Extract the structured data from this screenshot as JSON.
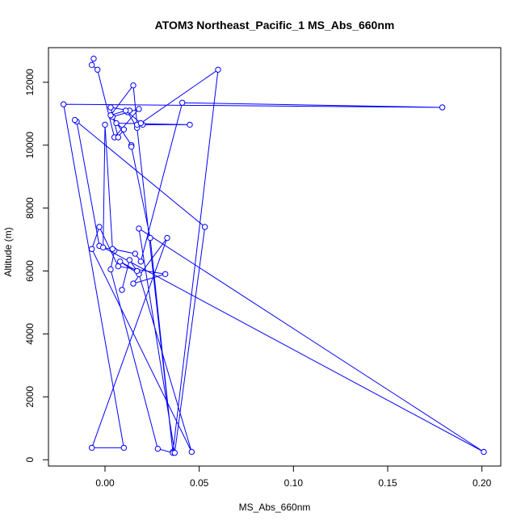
{
  "chart_data": {
    "type": "line",
    "title": "ATOM3 Northeast_Pacific_1 MS_Abs_660nm",
    "xlabel": "MS_Abs_660nm",
    "ylabel": "Altitude (m)",
    "xlim": [
      -0.03,
      0.21
    ],
    "ylim": [
      -200,
      13100
    ],
    "x_ticks": [
      0.0,
      0.05,
      0.1,
      0.15,
      0.2
    ],
    "x_tick_labels": [
      "0.00",
      "0.05",
      "0.10",
      "0.15",
      "0.20"
    ],
    "y_ticks": [
      0,
      2000,
      4000,
      6000,
      8000,
      10000,
      12000
    ],
    "y_tick_labels": [
      "0",
      "2000",
      "4000",
      "6000",
      "8000",
      "10000",
      "12000"
    ],
    "grid": false,
    "markers": "open-circle",
    "series_color": "#0000ff",
    "series": [
      {
        "x": [
          -0.006,
          -0.007,
          -0.004,
          0.005,
          0.018,
          0.004,
          0.014,
          0.014,
          0.024,
          0.036,
          0.017,
          0.012,
          0.02,
          0.045,
          0.006,
          0.01,
          0.007,
          0.003,
          0.013,
          0.011,
          0.003,
          0.015,
          0.017,
          0.019,
          0.06,
          0.036,
          0.028,
          0.003,
          0.005,
          -0.003,
          -0.015,
          -0.016,
          0.053,
          0.037,
          0.018,
          0.201,
          -0.001,
          0.0,
          0.004,
          0.016,
          0.019,
          0.041,
          0.179,
          -0.022,
          0.01,
          -0.007,
          0.033,
          0.015,
          0.032,
          0.007,
          -0.003,
          -0.007,
          0.046,
          0.018,
          0.008,
          0.017,
          0.013,
          0.009
        ],
        "y": [
          12750,
          12550,
          12400,
          10250,
          11150,
          10900,
          10000,
          9950,
          7050,
          250,
          10550,
          11050,
          10650,
          10650,
          10700,
          10500,
          10250,
          11200,
          11100,
          11100,
          10950,
          11900,
          10650,
          10700,
          12400,
          220,
          350,
          6050,
          6650,
          6800,
          10750,
          10800,
          7400,
          220,
          7350,
          250,
          6750,
          10650,
          6700,
          6550,
          6300,
          11350,
          11200,
          11300,
          380,
          380,
          7050,
          5600,
          5900,
          6150,
          7400,
          6700,
          250,
          5900,
          6300,
          6000,
          6350,
          5400
        ]
      }
    ]
  }
}
